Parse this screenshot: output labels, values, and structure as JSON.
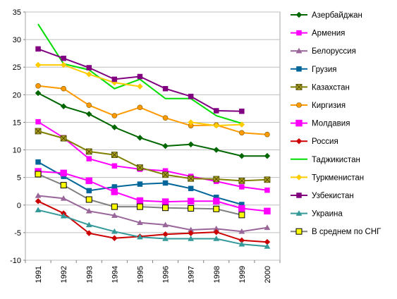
{
  "chart_data": {
    "type": "line",
    "x": [
      "1991",
      "1992",
      "1993",
      "1994",
      "1995",
      "1996",
      "1997",
      "1998",
      "1999",
      "2000"
    ],
    "ylim": [
      -10,
      35
    ],
    "yticks": [
      -10,
      -5,
      0,
      5,
      10,
      15,
      20,
      25,
      30,
      35
    ],
    "grid": "horizontal",
    "legend_position": "right",
    "series": [
      {
        "name": "Азербайджан",
        "color": "#006600",
        "marker": "diamond",
        "values": [
          20.3,
          17.9,
          16.5,
          14.1,
          12.2,
          10.7,
          11.0,
          10.0,
          8.9,
          8.9
        ]
      },
      {
        "name": "Армения",
        "color": "#ff00ff",
        "marker": "square",
        "values": [
          15.1,
          12.2,
          8.4,
          7.1,
          6.5,
          6.2,
          5.2,
          4.3,
          3.3,
          2.7
        ]
      },
      {
        "name": "Белоруссия",
        "color": "#996699",
        "marker": "triangle",
        "values": [
          1.7,
          1.2,
          -1.1,
          -1.9,
          -3.2,
          -3.6,
          -4.5,
          -4.3,
          -4.8,
          -4.1
        ]
      },
      {
        "name": "Грузия",
        "color": "#006699",
        "marker": "square",
        "values": [
          7.8,
          5.2,
          2.6,
          3.3,
          3.8,
          4.0,
          3.0,
          1.4,
          0.1,
          null
        ]
      },
      {
        "name": "Казахстан",
        "color": "#808000",
        "marker": "xsquare",
        "values": [
          13.4,
          12.1,
          9.7,
          9.1,
          6.8,
          5.5,
          4.8,
          4.7,
          4.4,
          4.6
        ]
      },
      {
        "name": "Киргизия",
        "color": "#ff9900",
        "marker": "circle",
        "values": [
          21.6,
          21.1,
          18.1,
          16.2,
          17.7,
          15.8,
          14.4,
          14.5,
          13.1,
          12.8
        ]
      },
      {
        "name": "Молдавия",
        "color": "#ff00ff",
        "marker": "bigsquare",
        "values": [
          6.1,
          5.8,
          4.4,
          2.4,
          0.8,
          0.6,
          0.7,
          0.7,
          -0.6,
          -1.1
        ]
      },
      {
        "name": "Россия",
        "color": "#cc0000",
        "marker": "diamond",
        "values": [
          0.7,
          -1.5,
          -5.1,
          -6.0,
          -5.7,
          -5.3,
          -5.1,
          -4.9,
          -6.4,
          -6.7
        ]
      },
      {
        "name": "Таджикистан",
        "color": "#00dd00",
        "marker": "none",
        "values": [
          32.8,
          25.6,
          24.5,
          21.1,
          22.8,
          19.3,
          19.3,
          16.2,
          14.8,
          null
        ]
      },
      {
        "name": "Туркменистан",
        "color": "#ffcc00",
        "marker": "diamond",
        "values": [
          25.4,
          25.4,
          23.7,
          22.2,
          21.5,
          null,
          15.0,
          14.4,
          14.6,
          null
        ]
      },
      {
        "name": "Узбекистан",
        "color": "#800080",
        "marker": "square",
        "values": [
          28.3,
          26.6,
          24.9,
          22.8,
          23.3,
          21.1,
          19.7,
          17.1,
          17.0,
          null
        ]
      },
      {
        "name": "Украина",
        "color": "#339999",
        "marker": "triangle",
        "values": [
          -0.9,
          -2.0,
          -3.6,
          -4.8,
          -5.8,
          -6.1,
          -6.1,
          -6.1,
          -7.1,
          -7.5
        ]
      },
      {
        "name": "В среднем по СНГ",
        "color": "#808080",
        "marker": "yellowsquare",
        "values": [
          5.6,
          3.6,
          1.0,
          -0.3,
          -0.3,
          -0.5,
          -0.6,
          -0.7,
          -1.8,
          null
        ]
      }
    ]
  }
}
